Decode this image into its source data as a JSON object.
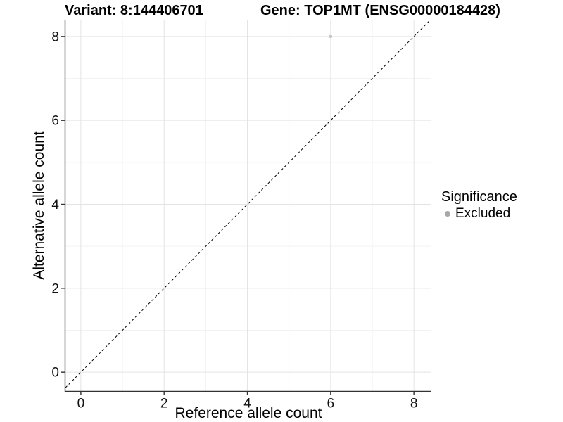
{
  "chart_data": {
    "type": "scatter",
    "title_left": "Variant: 8:144406701",
    "title_right": "Gene: TOP1MT (ENSG00000184428)",
    "xlabel": "Reference allele count",
    "ylabel": "Alternative allele count",
    "x_ticks": [
      0,
      2,
      4,
      6,
      8
    ],
    "y_ticks": [
      0,
      2,
      4,
      6,
      8
    ],
    "x_minor_ticks": [
      1,
      3,
      5,
      7
    ],
    "y_minor_ticks": [
      1,
      3,
      5,
      7
    ],
    "xlim": [
      -0.37,
      8.42
    ],
    "ylim": [
      -0.45,
      8.4
    ],
    "grid": "major and minor, light grey on white",
    "reference_line": {
      "type": "identity y=x",
      "style": "dashed",
      "color": "#000000"
    },
    "series": [
      {
        "name": "Excluded",
        "color": "#c4c4c4",
        "points": [
          {
            "x": 6,
            "y": 8
          }
        ]
      }
    ],
    "legend": {
      "position": "right",
      "title": "Significance",
      "items": [
        {
          "label": "Excluded",
          "color": "#a8a8a8"
        }
      ]
    },
    "colors": {
      "grid_major": "#e4e4e4",
      "grid_minor": "#f2f2f2",
      "axis_line": "#333333",
      "tick_label": "#111111",
      "background": "#ffffff"
    }
  }
}
